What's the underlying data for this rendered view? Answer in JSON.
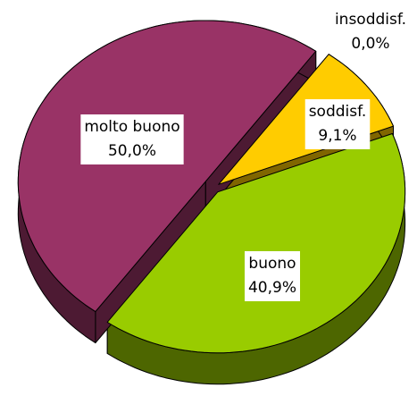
{
  "chart_data": {
    "type": "pie",
    "categories": [
      "insoddisf.",
      "soddisf.",
      "buono",
      "molto buono"
    ],
    "values": [
      0,
      9.1,
      40.9,
      50.0
    ],
    "value_labels": [
      "0,0%",
      "9,1%",
      "40,9%",
      "50,0%"
    ],
    "colors": [
      "#ff3333",
      "#ffcc00",
      "#99cc00",
      "#993366"
    ],
    "side_colors": [
      "#801a1a",
      "#806600",
      "#4d6600",
      "#4d1a33"
    ]
  }
}
